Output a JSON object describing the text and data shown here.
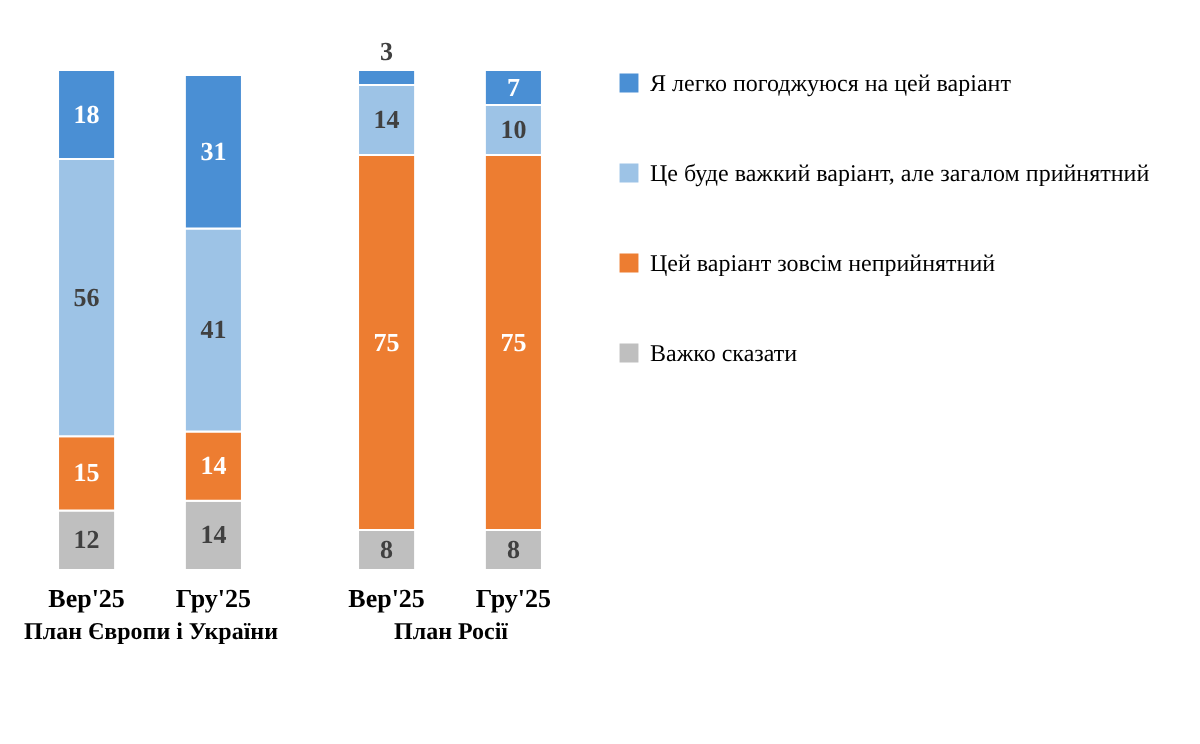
{
  "chart_data": [
    {
      "type": "bar",
      "stacked": true,
      "data_labels": true,
      "tick_labels": "x",
      "xlabel": "План Європи і України",
      "categories": [
        "Вер'25",
        "Гру'25"
      ],
      "series": [
        {
          "color": "#bfbfbf",
          "values": [
            12,
            14
          ]
        },
        {
          "color": "#ed7d31",
          "values": [
            15,
            14
          ]
        },
        {
          "color": "#9dc3e6",
          "values": [
            56,
            41
          ]
        },
        {
          "color": "#4a8fd4",
          "values": [
            18,
            31
          ]
        }
      ]
    },
    {
      "type": "bar",
      "stacked": true,
      "data_labels": true,
      "legend": "right",
      "tick_labels": "x",
      "xlabel": "План Росії",
      "categories": [
        "Вер'25",
        "Гру'25"
      ],
      "series": [
        {
          "name": "Важко сказати",
          "color": "#bfbfbf",
          "values": [
            8,
            8
          ]
        },
        {
          "name": "Цей варіант зовсім неприйнятний",
          "color": "#ed7d31",
          "values": [
            75,
            75
          ]
        },
        {
          "name": "Це буде важкий варіант, але загалом прийнятний",
          "color": "#9dc3e6",
          "values": [
            14,
            10
          ]
        },
        {
          "name": "Я легко погоджуюся на цей варіант",
          "color": "#4a8fd4",
          "values": [
            3,
            7
          ]
        }
      ]
    }
  ]
}
